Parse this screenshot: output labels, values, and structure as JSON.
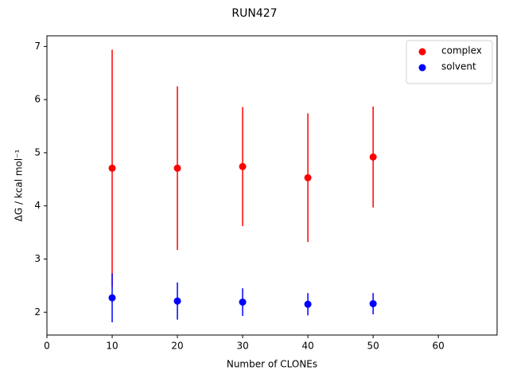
{
  "chart_data": {
    "type": "scatter",
    "title": "RUN427",
    "xlabel": "Number of CLONEs",
    "ylabel": "ΔG / kcal mol⁻¹",
    "xlim": [
      0,
      69
    ],
    "xticks": [
      0,
      10,
      20,
      30,
      40,
      50,
      60
    ],
    "ylim": [
      1.57,
      7.2
    ],
    "yticks": [
      2,
      3,
      4,
      5,
      6,
      7
    ],
    "legend": "upper right",
    "series": [
      {
        "name": "complex",
        "color": "#ff0000",
        "x": [
          10,
          20,
          30,
          40,
          50
        ],
        "values": [
          4.71,
          4.71,
          4.74,
          4.53,
          4.92
        ],
        "errors": [
          2.23,
          1.54,
          1.12,
          1.21,
          0.95
        ]
      },
      {
        "name": "solvent",
        "color": "#0000ff",
        "x": [
          10,
          20,
          30,
          40,
          50
        ],
        "values": [
          2.27,
          2.21,
          2.19,
          2.15,
          2.16
        ],
        "errors": [
          0.46,
          0.35,
          0.26,
          0.21,
          0.2
        ]
      }
    ]
  }
}
